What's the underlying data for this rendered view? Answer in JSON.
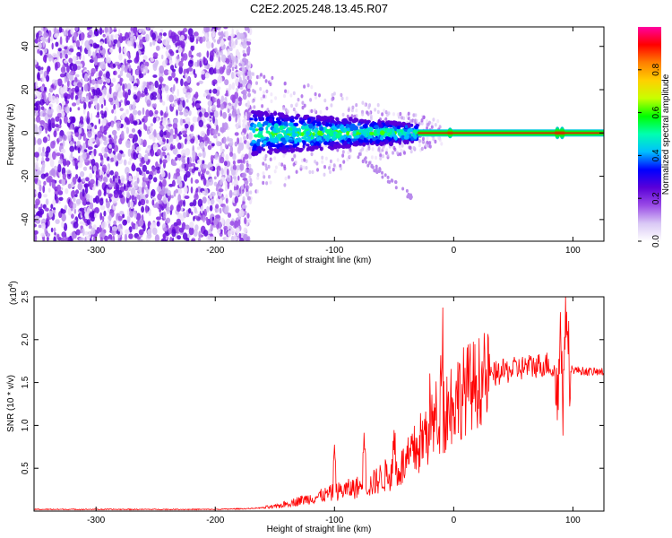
{
  "figure_title": "C2E2.2025.248.13.45.R07",
  "chart_data": [
    {
      "type": "heatmap",
      "title": "C2E2.2025.248.13.45.R07",
      "xlabel": "Height of straight line (km)",
      "ylabel": "Frequency (Hz)",
      "xlim": [
        -352,
        126
      ],
      "ylim": [
        -50,
        49
      ],
      "x_ticks": [
        -300,
        -200,
        -100,
        0,
        100
      ],
      "y_ticks": [
        -40,
        -20,
        0,
        20,
        40
      ],
      "colorbar": {
        "label": "Normalized spectral amplitude",
        "range": [
          0,
          1
        ],
        "ticks": [
          0.0,
          0.2,
          0.4,
          0.6,
          0.8
        ],
        "tick_labels": [
          "0.0",
          "0.2",
          "0.4",
          "0.6",
          "0.8"
        ],
        "colormap": [
          "#ffffff",
          "#d9c8f5",
          "#9a4be6",
          "#5a00d8",
          "#0000ff",
          "#00bfff",
          "#00ffb0",
          "#00ff00",
          "#c8ff00",
          "#ffd000",
          "#ff8000",
          "#ff0000",
          "#ff00a0"
        ]
      },
      "regions": [
        {
          "description": "broadband noise",
          "x_range": [
            -352,
            -170
          ],
          "freq_range": [
            -50,
            49
          ],
          "amplitude": 0.1
        },
        {
          "description": "signal onset",
          "x_range": [
            -170,
            -30
          ],
          "freq_range": [
            -12,
            12
          ],
          "amplitude": 0.3
        },
        {
          "description": "focused signal",
          "x_range": [
            -30,
            126
          ],
          "center_freq": 0,
          "amplitude": 0.95
        }
      ]
    },
    {
      "type": "line",
      "xlabel": "Height of straight line (km)",
      "ylabel": "SNR (10 * v/v)",
      "y_multiplier": "(x10",
      "y_multiplier_exp": "4",
      "xlim": [
        -352,
        126
      ],
      "ylim": [
        0,
        2.5
      ],
      "x_ticks": [
        -300,
        -200,
        -100,
        0,
        100
      ],
      "y_ticks": [
        0.5,
        1.0,
        1.5,
        2.0,
        2.5
      ],
      "y_tick_labels": [
        "0.5",
        "1.0",
        "1.5",
        "2.0",
        "2.5"
      ],
      "series": [
        {
          "color": "#ff0000",
          "x": [
            -352,
            -300,
            -250,
            -200,
            -170,
            -150,
            -130,
            -110,
            -100,
            -90,
            -80,
            -70,
            -60,
            -50,
            -40,
            -30,
            -20,
            -10,
            0,
            10,
            20,
            30,
            40,
            50,
            60,
            70,
            80,
            85,
            90,
            93,
            96,
            100,
            110,
            126
          ],
          "values": [
            0.02,
            0.02,
            0.02,
            0.02,
            0.03,
            0.05,
            0.12,
            0.18,
            0.22,
            0.25,
            0.28,
            0.3,
            0.4,
            0.45,
            0.55,
            0.75,
            0.95,
            1.15,
            1.3,
            1.42,
            1.5,
            1.58,
            1.62,
            1.65,
            1.68,
            1.7,
            1.72,
            1.6,
            1.3,
            1.1,
            1.7,
            1.65,
            1.63,
            1.62
          ],
          "peaks": [
            {
              "x": -100,
              "y": 0.7
            },
            {
              "x": -75,
              "y": 0.82
            },
            {
              "x": -50,
              "y": 0.85
            },
            {
              "x": -20,
              "y": 1.2
            },
            {
              "x": -10,
              "y": 2.05
            },
            {
              "x": 90,
              "y": 2.2
            },
            {
              "x": 94,
              "y": 2.5
            }
          ]
        }
      ]
    }
  ]
}
